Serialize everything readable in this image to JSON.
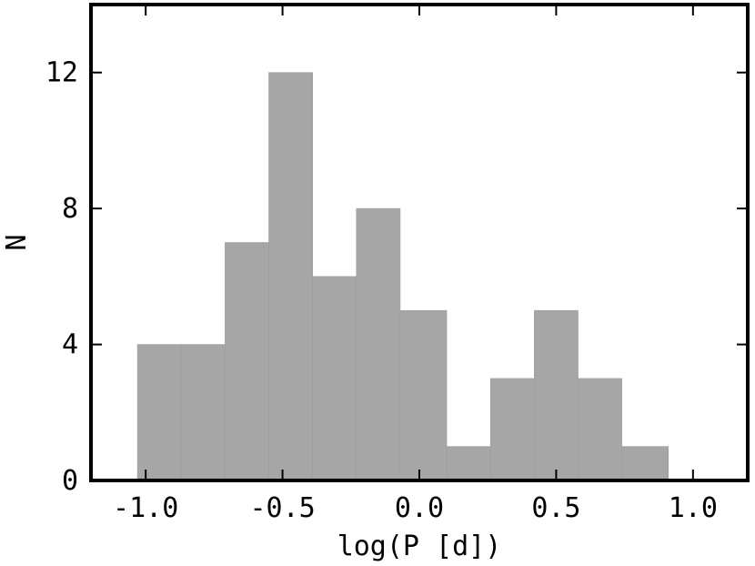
{
  "chart_data": {
    "type": "bar",
    "title": "",
    "xlabel": "log(P [d])",
    "ylabel": "N",
    "xlim": [
      -1.2,
      1.2
    ],
    "ylim": [
      0,
      14
    ],
    "grid": false,
    "bar_color": "#a6a6a6",
    "x_ticks": [
      {
        "value": -1.0,
        "label": "-1.0"
      },
      {
        "value": -0.5,
        "label": "-0.5"
      },
      {
        "value": 0.0,
        "label": "0.0"
      },
      {
        "value": 0.5,
        "label": "0.5"
      },
      {
        "value": 1.0,
        "label": "1.0"
      }
    ],
    "y_ticks": [
      {
        "value": 0,
        "label": "0"
      },
      {
        "value": 4,
        "label": "4"
      },
      {
        "value": 8,
        "label": "8"
      },
      {
        "value": 12,
        "label": "12"
      }
    ],
    "bins": [
      {
        "start": -1.03,
        "end": -0.87,
        "count": 4
      },
      {
        "start": -0.87,
        "end": -0.71,
        "count": 4
      },
      {
        "start": -0.71,
        "end": -0.55,
        "count": 7
      },
      {
        "start": -0.55,
        "end": -0.39,
        "count": 12
      },
      {
        "start": -0.39,
        "end": -0.23,
        "count": 6
      },
      {
        "start": -0.23,
        "end": -0.07,
        "count": 8
      },
      {
        "start": -0.07,
        "end": 0.1,
        "count": 5
      },
      {
        "start": 0.1,
        "end": 0.26,
        "count": 1
      },
      {
        "start": 0.26,
        "end": 0.42,
        "count": 3
      },
      {
        "start": 0.42,
        "end": 0.58,
        "count": 5
      },
      {
        "start": 0.58,
        "end": 0.74,
        "count": 3
      },
      {
        "start": 0.74,
        "end": 0.91,
        "count": 1
      }
    ]
  }
}
